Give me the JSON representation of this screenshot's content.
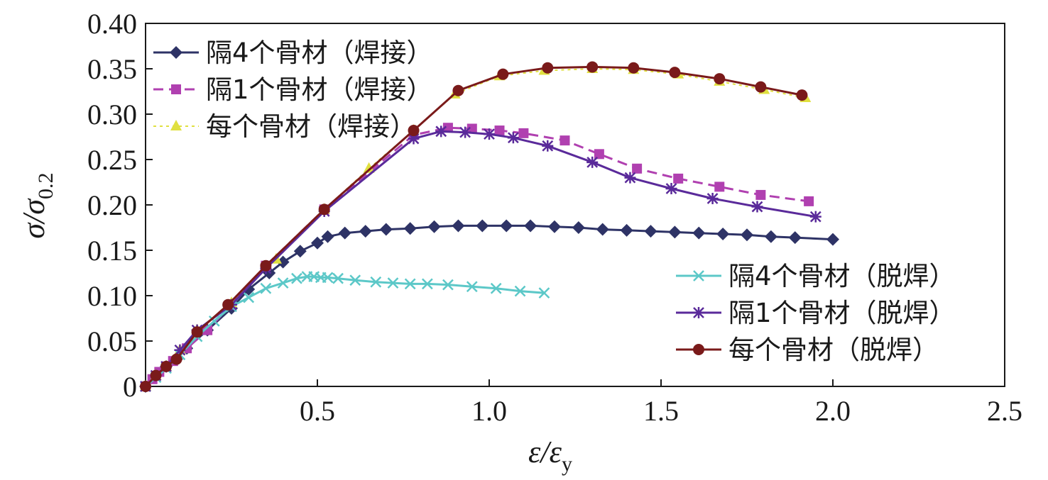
{
  "chart_data": {
    "type": "line",
    "title": "",
    "xlabel": {
      "main": "ε/ε",
      "sub": "y"
    },
    "ylabel": {
      "main": "σ/σ",
      "sub": "0.2"
    },
    "xlim": [
      0,
      2.5
    ],
    "ylim": [
      0,
      0.4
    ],
    "xticks": [
      0.5,
      1.0,
      1.5,
      2.0,
      2.5
    ],
    "xtick_labels": [
      "0.5",
      "1.0",
      "1.5",
      "2.0",
      "2.5"
    ],
    "yticks": [
      0,
      0.05,
      0.1,
      0.15,
      0.2,
      0.25,
      0.3,
      0.35,
      0.4
    ],
    "ytick_labels": [
      "0",
      "0.05",
      "0.10",
      "0.15",
      "0.20",
      "0.25",
      "0.30",
      "0.35",
      "0.40"
    ],
    "grid": false,
    "legend_left_placement": "top-left",
    "legend_right_placement": "bottom-right",
    "series": [
      {
        "name": "隔4个骨材（焊接）",
        "color": "#2e3366",
        "marker": "diamond",
        "dash": "solid",
        "x": [
          0.0,
          0.03,
          0.06,
          0.09,
          0.12,
          0.18,
          0.25,
          0.3,
          0.36,
          0.4,
          0.45,
          0.5,
          0.53,
          0.58,
          0.64,
          0.7,
          0.77,
          0.84,
          0.91,
          0.98,
          1.05,
          1.12,
          1.19,
          1.26,
          1.33,
          1.4,
          1.47,
          1.54,
          1.61,
          1.68,
          1.75,
          1.82,
          1.89,
          2.0
        ],
        "y": [
          0.0,
          0.012,
          0.022,
          0.03,
          0.042,
          0.062,
          0.086,
          0.107,
          0.125,
          0.137,
          0.149,
          0.158,
          0.165,
          0.169,
          0.171,
          0.173,
          0.174,
          0.176,
          0.177,
          0.177,
          0.177,
          0.177,
          0.176,
          0.175,
          0.173,
          0.172,
          0.171,
          0.17,
          0.169,
          0.168,
          0.167,
          0.165,
          0.164,
          0.162
        ]
      },
      {
        "name": "隔1个骨材（焊接）",
        "color": "#b040b0",
        "marker": "square",
        "dash": "dash",
        "x": [
          0.0,
          0.02,
          0.04,
          0.06,
          0.08,
          0.12,
          0.18,
          0.25,
          0.35,
          0.52,
          0.78,
          0.88,
          0.95,
          1.03,
          1.1,
          1.22,
          1.32,
          1.43,
          1.55,
          1.67,
          1.79,
          1.93
        ],
        "y": [
          0.0,
          0.008,
          0.016,
          0.022,
          0.028,
          0.042,
          0.062,
          0.09,
          0.133,
          0.195,
          0.277,
          0.285,
          0.284,
          0.282,
          0.279,
          0.271,
          0.256,
          0.24,
          0.229,
          0.22,
          0.211,
          0.204
        ]
      },
      {
        "name": "每个骨材（焊接）",
        "color": "#e0e040",
        "marker": "triangle",
        "dash": "dot",
        "x": [
          0.0,
          0.03,
          0.06,
          0.1,
          0.15,
          0.25,
          0.38,
          0.52,
          0.65,
          0.78,
          0.9,
          1.03,
          1.16,
          1.3,
          1.42,
          1.55,
          1.67,
          1.8,
          1.92
        ],
        "y": [
          0.0,
          0.012,
          0.022,
          0.04,
          0.062,
          0.092,
          0.14,
          0.195,
          0.24,
          0.282,
          0.322,
          0.342,
          0.348,
          0.35,
          0.349,
          0.344,
          0.336,
          0.327,
          0.318
        ]
      },
      {
        "name": "隔4个骨材（脱焊）",
        "color": "#5cc8c8",
        "marker": "x",
        "dash": "solid",
        "x": [
          0.0,
          0.03,
          0.06,
          0.1,
          0.15,
          0.2,
          0.25,
          0.3,
          0.35,
          0.4,
          0.44,
          0.47,
          0.49,
          0.51,
          0.53,
          0.56,
          0.61,
          0.67,
          0.72,
          0.77,
          0.82,
          0.88,
          0.95,
          1.02,
          1.09,
          1.16
        ],
        "y": [
          0.0,
          0.01,
          0.02,
          0.035,
          0.055,
          0.072,
          0.088,
          0.098,
          0.108,
          0.114,
          0.119,
          0.121,
          0.121,
          0.12,
          0.12,
          0.119,
          0.117,
          0.115,
          0.114,
          0.113,
          0.113,
          0.112,
          0.11,
          0.108,
          0.105,
          0.103
        ]
      },
      {
        "name": "隔1个骨材（脱焊）",
        "color": "#5a2a9a",
        "marker": "asterisk",
        "dash": "solid",
        "x": [
          0.0,
          0.03,
          0.06,
          0.1,
          0.15,
          0.25,
          0.35,
          0.52,
          0.78,
          0.86,
          0.93,
          1.0,
          1.07,
          1.17,
          1.3,
          1.41,
          1.53,
          1.65,
          1.78,
          1.95
        ],
        "y": [
          0.0,
          0.012,
          0.022,
          0.04,
          0.062,
          0.09,
          0.13,
          0.193,
          0.273,
          0.281,
          0.28,
          0.278,
          0.274,
          0.265,
          0.247,
          0.23,
          0.218,
          0.207,
          0.198,
          0.187
        ]
      },
      {
        "name": "每个骨材（脱焊）",
        "color": "#7a1a1a",
        "marker": "circle",
        "dash": "solid",
        "x": [
          0.0,
          0.03,
          0.06,
          0.09,
          0.15,
          0.24,
          0.35,
          0.52,
          0.78,
          0.91,
          1.04,
          1.17,
          1.3,
          1.42,
          1.54,
          1.67,
          1.79,
          1.91
        ],
        "y": [
          0.0,
          0.012,
          0.022,
          0.03,
          0.06,
          0.09,
          0.133,
          0.195,
          0.282,
          0.326,
          0.344,
          0.351,
          0.352,
          0.351,
          0.346,
          0.339,
          0.33,
          0.321
        ]
      }
    ]
  }
}
